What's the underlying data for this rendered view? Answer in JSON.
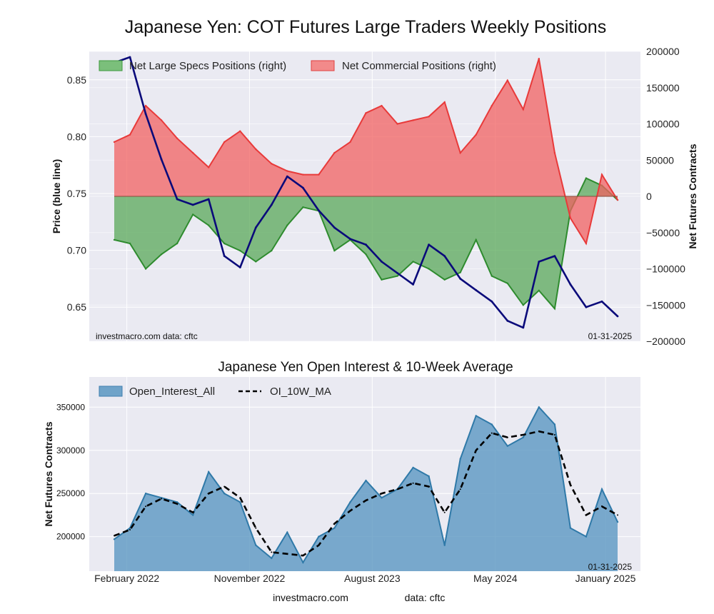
{
  "chart_data": [
    {
      "type": "area",
      "title": "Japanese Yen: COT Futures Large Traders Weekly Positions",
      "ylabel_left": "Price (blue line)",
      "ylabel_right": "Net Futures Contracts",
      "ylim_left": [
        0.62,
        0.875
      ],
      "ylim_right": [
        -200000,
        200000
      ],
      "yticks_left": [
        "0.85",
        "0.80",
        "0.75",
        "0.70",
        "0.65"
      ],
      "yticks_right": [
        "200000",
        "150000",
        "100000",
        "50000",
        "0",
        "−50000",
        "−100000",
        "−150000",
        "−200000"
      ],
      "grid": true,
      "legend_position": "top",
      "watermark": "investmacro.com    data: cftc",
      "date_label": "01-31-2025",
      "colors": {
        "specs": "#2e8b2e",
        "commercial": "#e83a3a",
        "price": "#0a0a7a"
      },
      "x_range": [
        "2022-01-04",
        "2025-01-28"
      ],
      "series": [
        {
          "name": "Net Large Specs Positions (right)",
          "x": [
            "2022-01-04",
            "2022-02-08",
            "2022-03-15",
            "2022-04-19",
            "2022-05-24",
            "2022-06-28",
            "2022-08-02",
            "2022-09-06",
            "2022-10-11",
            "2022-11-15",
            "2022-12-20",
            "2023-01-24",
            "2023-02-28",
            "2023-04-04",
            "2023-05-09",
            "2023-06-13",
            "2023-07-18",
            "2023-08-22",
            "2023-09-26",
            "2023-10-31",
            "2023-12-05",
            "2024-01-09",
            "2024-02-13",
            "2024-03-19",
            "2024-04-23",
            "2024-05-28",
            "2024-07-02",
            "2024-08-06",
            "2024-09-10",
            "2024-10-15",
            "2024-11-19",
            "2024-12-24",
            "2025-01-28"
          ],
          "values": [
            -60000,
            -65000,
            -100000,
            -80000,
            -65000,
            -25000,
            -40000,
            -65000,
            -75000,
            -90000,
            -75000,
            -40000,
            -15000,
            -20000,
            -75000,
            -60000,
            -80000,
            -115000,
            -110000,
            -90000,
            -100000,
            -115000,
            -105000,
            -60000,
            -110000,
            -120000,
            -150000,
            -130000,
            -155000,
            -20000,
            25000,
            15000,
            -5000
          ]
        },
        {
          "name": "Net Commercial Positions (right)",
          "x": [
            "2022-01-04",
            "2022-02-08",
            "2022-03-15",
            "2022-04-19",
            "2022-05-24",
            "2022-06-28",
            "2022-08-02",
            "2022-09-06",
            "2022-10-11",
            "2022-11-15",
            "2022-12-20",
            "2023-01-24",
            "2023-02-28",
            "2023-04-04",
            "2023-05-09",
            "2023-06-13",
            "2023-07-18",
            "2023-08-22",
            "2023-09-26",
            "2023-10-31",
            "2023-12-05",
            "2024-01-09",
            "2024-02-13",
            "2024-03-19",
            "2024-04-23",
            "2024-05-28",
            "2024-07-02",
            "2024-08-06",
            "2024-09-10",
            "2024-10-15",
            "2024-11-19",
            "2024-12-24",
            "2025-01-28"
          ],
          "values": [
            75000,
            85000,
            125000,
            105000,
            80000,
            60000,
            40000,
            75000,
            90000,
            65000,
            45000,
            35000,
            30000,
            30000,
            60000,
            75000,
            115000,
            125000,
            100000,
            105000,
            110000,
            130000,
            60000,
            85000,
            125000,
            160000,
            120000,
            190000,
            60000,
            -30000,
            -65000,
            30000,
            -5000
          ]
        },
        {
          "name": "Price",
          "axis": "left",
          "x": [
            "2022-01-04",
            "2022-02-08",
            "2022-03-15",
            "2022-04-19",
            "2022-05-24",
            "2022-06-28",
            "2022-08-02",
            "2022-09-06",
            "2022-10-11",
            "2022-11-15",
            "2022-12-20",
            "2023-01-24",
            "2023-02-28",
            "2023-04-04",
            "2023-05-09",
            "2023-06-13",
            "2023-07-18",
            "2023-08-22",
            "2023-09-26",
            "2023-10-31",
            "2023-12-05",
            "2024-01-09",
            "2024-02-13",
            "2024-03-19",
            "2024-04-23",
            "2024-05-28",
            "2024-07-02",
            "2024-08-06",
            "2024-09-10",
            "2024-10-15",
            "2024-11-19",
            "2024-12-24",
            "2025-01-28"
          ],
          "values": [
            0.865,
            0.87,
            0.82,
            0.78,
            0.745,
            0.74,
            0.745,
            0.695,
            0.685,
            0.72,
            0.74,
            0.765,
            0.755,
            0.735,
            0.72,
            0.71,
            0.705,
            0.69,
            0.68,
            0.67,
            0.705,
            0.695,
            0.675,
            0.665,
            0.655,
            0.638,
            0.632,
            0.69,
            0.695,
            0.67,
            0.65,
            0.655,
            0.642
          ]
        }
      ]
    },
    {
      "type": "area",
      "title": "Japanese Yen Open Interest & 10-Week Average",
      "ylabel": "Net Futures Contracts",
      "ylim": [
        160000,
        385000
      ],
      "yticks": [
        "350000",
        "300000",
        "250000",
        "200000"
      ],
      "xticks": [
        "February 2022",
        "November 2022",
        "August 2023",
        "May 2024",
        "January 2025"
      ],
      "grid": true,
      "legend_position": "top-left",
      "date_label": "01-31-2025",
      "colors": {
        "oi": "#5b97c2",
        "ma": "#000000"
      },
      "x_range": [
        "2022-01-04",
        "2025-01-28"
      ],
      "series": [
        {
          "name": "Open_Interest_All",
          "x": [
            "2022-01-04",
            "2022-02-08",
            "2022-03-15",
            "2022-04-19",
            "2022-05-24",
            "2022-06-28",
            "2022-08-02",
            "2022-09-06",
            "2022-10-11",
            "2022-11-15",
            "2022-12-20",
            "2023-01-24",
            "2023-02-28",
            "2023-04-04",
            "2023-05-09",
            "2023-06-13",
            "2023-07-18",
            "2023-08-22",
            "2023-09-26",
            "2023-10-31",
            "2023-12-05",
            "2024-01-09",
            "2024-02-13",
            "2024-03-19",
            "2024-04-23",
            "2024-05-28",
            "2024-07-02",
            "2024-08-06",
            "2024-09-10",
            "2024-10-15",
            "2024-11-19",
            "2024-12-24",
            "2025-01-28"
          ],
          "values": [
            197000,
            210000,
            250000,
            245000,
            240000,
            225000,
            275000,
            250000,
            240000,
            190000,
            175000,
            205000,
            170000,
            200000,
            210000,
            240000,
            265000,
            245000,
            255000,
            280000,
            270000,
            190000,
            290000,
            340000,
            330000,
            305000,
            315000,
            350000,
            330000,
            210000,
            200000,
            255000,
            217000
          ]
        },
        {
          "name": "OI_10W_MA",
          "x": [
            "2022-01-04",
            "2022-02-08",
            "2022-03-15",
            "2022-04-19",
            "2022-05-24",
            "2022-06-28",
            "2022-08-02",
            "2022-09-06",
            "2022-10-11",
            "2022-11-15",
            "2022-12-20",
            "2023-01-24",
            "2023-02-28",
            "2023-04-04",
            "2023-05-09",
            "2023-06-13",
            "2023-07-18",
            "2023-08-22",
            "2023-09-26",
            "2023-10-31",
            "2023-12-05",
            "2024-01-09",
            "2024-02-13",
            "2024-03-19",
            "2024-04-23",
            "2024-05-28",
            "2024-07-02",
            "2024-08-06",
            "2024-09-10",
            "2024-10-15",
            "2024-11-19",
            "2024-12-24",
            "2025-01-28"
          ],
          "values": [
            201000,
            208000,
            235000,
            244000,
            238000,
            228000,
            250000,
            258000,
            245000,
            210000,
            182000,
            180000,
            178000,
            190000,
            215000,
            230000,
            242000,
            250000,
            255000,
            262000,
            258000,
            228000,
            255000,
            300000,
            320000,
            315000,
            318000,
            322000,
            318000,
            260000,
            225000,
            235000,
            225000
          ]
        }
      ]
    }
  ],
  "footer": {
    "site": "investmacro.com",
    "source": "data: cftc"
  }
}
